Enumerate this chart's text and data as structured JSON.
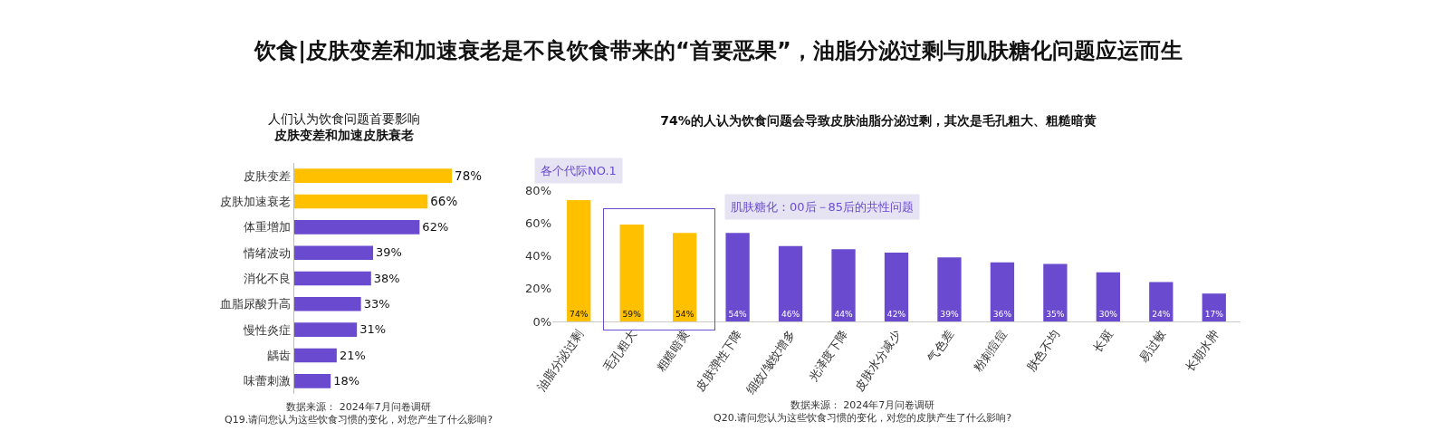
{
  "chart_data": [
    {
      "type": "other",
      "title": "饮食|皮肤变差和加速衰老是不良饮食带来的“首要恶果”，油脂分泌过剩与肌肤糖化问题应运而生"
    },
    {
      "type": "bar",
      "orientation": "horizontal",
      "title": "人们认为饮食问题首要影响",
      "subtitle": "皮肤变差和加速皮肤衰老",
      "categories": [
        "皮肤变差",
        "皮肤加速衰老",
        "体重增加",
        "情绪波动",
        "消化不良",
        "血脂尿酸升高",
        "慢性炎症",
        "龋齿",
        "味蕾刺激"
      ],
      "values": [
        78,
        66,
        62,
        39,
        38,
        33,
        31,
        21,
        18
      ],
      "colors": [
        "#ffc000",
        "#ffc000",
        "#6a4bcf",
        "#6a4bcf",
        "#6a4bcf",
        "#6a4bcf",
        "#6a4bcf",
        "#6a4bcf",
        "#6a4bcf"
      ],
      "value_labels": [
        "78%",
        "66%",
        "62%",
        "39%",
        "38%",
        "33%",
        "31%",
        "21%",
        "18%"
      ],
      "annotations": [
        "数据来源： 2024年7月问卷调研",
        "Q19.请问您认为这些饮食习惯的变化，对您产生了什么影响?"
      ],
      "grid": false
    },
    {
      "type": "bar",
      "title": "74%的人认为饮食问题会导致皮肤油脂分泌过剩，其次是毛孔粗大、粗糙暗黄",
      "categories": [
        "油脂分泌过剩",
        "毛孔粗大",
        "粗糙暗黄",
        "皮肤弹性下降",
        "细纹/皱纹增多",
        "光泽度下降",
        "皮肤水分减少",
        "气色差",
        "粉刺痘痘",
        "肤色不均",
        "长斑",
        "易过敏",
        "长期水肿"
      ],
      "values": [
        74,
        59,
        54,
        54,
        46,
        44,
        42,
        39,
        36,
        35,
        30,
        24,
        17
      ],
      "colors": [
        "#ffc000",
        "#ffc000",
        "#ffc000",
        "#6a4bcf",
        "#6a4bcf",
        "#6a4bcf",
        "#6a4bcf",
        "#6a4bcf",
        "#6a4bcf",
        "#6a4bcf",
        "#6a4bcf",
        "#6a4bcf",
        "#6a4bcf"
      ],
      "value_labels": [
        "74%",
        "59%",
        "54%",
        "54%",
        "46%",
        "44%",
        "42%",
        "39%",
        "36%",
        "35%",
        "30%",
        "24%",
        "17%"
      ],
      "ylim": [
        0,
        80
      ],
      "yticks": [
        {
          "value": 0,
          "label": "0%"
        },
        {
          "value": 20,
          "label": "20%"
        },
        {
          "value": 40,
          "label": "40%"
        },
        {
          "value": 60,
          "label": "60%"
        },
        {
          "value": 80,
          "label": "80%"
        }
      ],
      "annotations": [
        {
          "text": "各个代际NO.1",
          "x": "油脂分泌过剩",
          "y": 74
        },
        "肌肤糖化：00后－85后的共性问题",
        "数据来源： 2024年7月问卷调研",
        "Q20.请问您认为这些饮食习惯的变化，对您的皮肤产生了什么影响?"
      ],
      "grid": false
    }
  ]
}
